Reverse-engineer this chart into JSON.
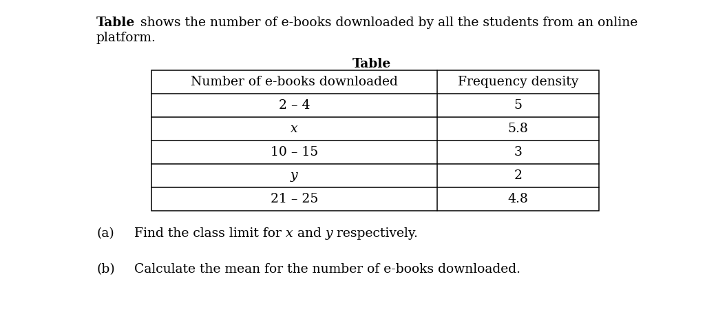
{
  "title_bold": "Table",
  "title_rest": "    shows the number of e-books downloaded by all the students from an online",
  "title_line2": "platform.",
  "table_title": "Table",
  "col_headers": [
    "Number of e-books downloaded",
    "Frequency density"
  ],
  "rows": [
    [
      "2 – 4",
      "5"
    ],
    [
      "x",
      "5.8"
    ],
    [
      "10 – 15",
      "3"
    ],
    [
      "y",
      "2"
    ],
    [
      "21 – 25",
      "4.8"
    ]
  ],
  "row_italic": [
    false,
    true,
    false,
    true,
    false
  ],
  "bg_color": "#ffffff",
  "text_color": "#000000",
  "font_size": 13.5
}
